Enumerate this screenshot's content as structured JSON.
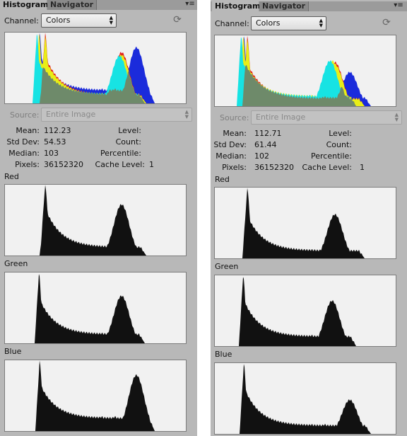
{
  "panels": [
    {
      "tabs": {
        "histogram": "Histogram",
        "navigator": "Navigator"
      },
      "channel": {
        "label": "Channel:",
        "value": "Colors"
      },
      "source": {
        "label": "Source:",
        "value": "Entire Image"
      },
      "stats": {
        "mean_label": "Mean:",
        "mean": "112.23",
        "std_label": "Std Dev:",
        "std": "54.53",
        "median_label": "Median:",
        "median": "103",
        "pixels_label": "Pixels:",
        "pixels": "36152320",
        "level_label": "Level:",
        "count_label": "Count:",
        "percentile_label": "Percentile:",
        "cache_label": "Cache Level:",
        "cache": "1"
      },
      "channels": {
        "red": "Red",
        "green": "Green",
        "blue": "Blue"
      }
    },
    {
      "tabs": {
        "histogram": "Histogram",
        "navigator": "Navigator"
      },
      "channel": {
        "label": "Channel:",
        "value": "Colors"
      },
      "source": {
        "label": "Source:",
        "value": "Entire Image"
      },
      "stats": {
        "mean_label": "Mean:",
        "mean": "112.71",
        "std_label": "Std Dev:",
        "std": "61.44",
        "median_label": "Median:",
        "median": "102",
        "pixels_label": "Pixels:",
        "pixels": "36152320",
        "level_label": "Level:",
        "count_label": "Count:",
        "percentile_label": "Percentile:",
        "cache_label": "Cache Level:",
        "cache": "1"
      },
      "channels": {
        "red": "Red",
        "green": "Green",
        "blue": "Blue"
      }
    }
  ],
  "colors": {
    "panel_bg": "#b8b8b8",
    "histogram_bg": "#f1f1f1",
    "histogram_fill": "#111111",
    "composite_gray": "#6e8a6a",
    "red": "#e31b1b",
    "green": "#22c43a",
    "blue": "#1b2bdb",
    "cyan": "#17e3e3",
    "yellow": "#e8ee17",
    "magenta": "#d822d8"
  },
  "icons": {
    "panel_menu": "panel-menu-icon",
    "refresh": "refresh-icon",
    "select_arrows": "dropdown-arrows-icon"
  }
}
